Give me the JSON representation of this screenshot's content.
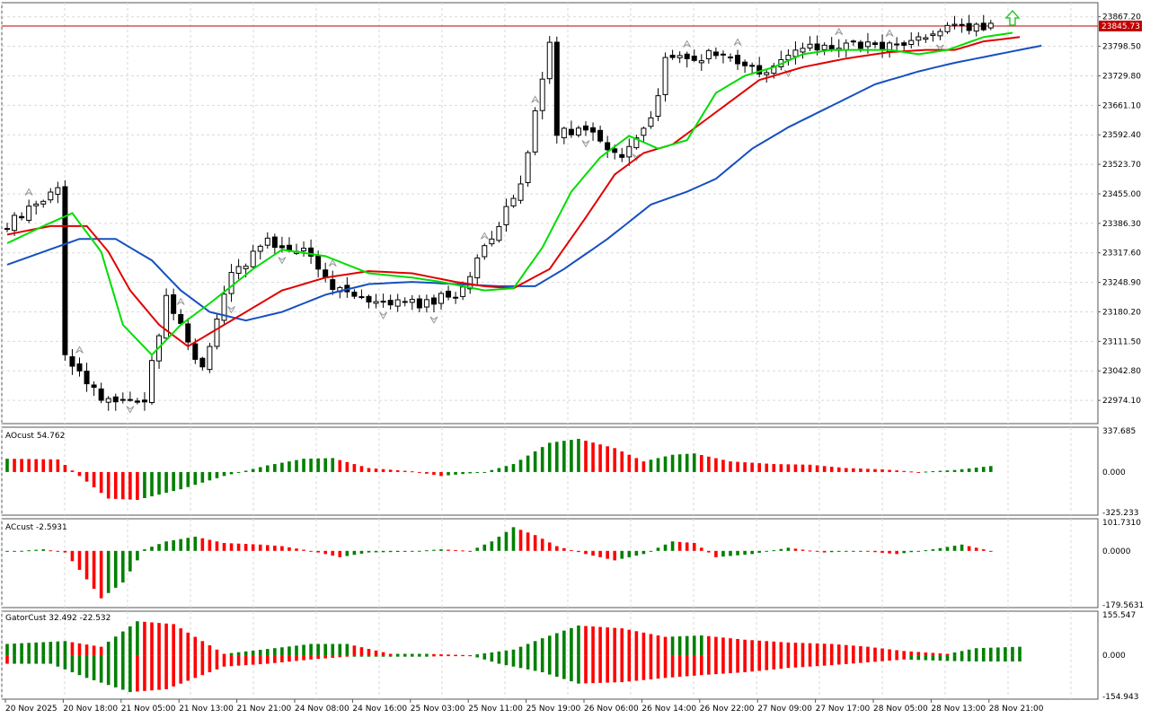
{
  "colors": {
    "bull": "#008000",
    "bear": "#ff0000",
    "ma_fast": "#00dd00",
    "ma_mid": "#e00000",
    "ma_slow": "#1550c0",
    "price_line": "#c00000",
    "grid": "#d9d9d9",
    "frame": "#555555",
    "fractal": "#9a9a9a",
    "arrow": "#35c535"
  },
  "icons": {
    "fractal": "fractal-arrow-icon",
    "signal": "up-arrow-icon"
  },
  "main": {
    "ylim": [
      22920,
      23900
    ],
    "yticks": [
      "23867.20",
      "23798.50",
      "23729.80",
      "23661.10",
      "23592.40",
      "23523.70",
      "23455.00",
      "23386.30",
      "23317.60",
      "23248.90",
      "23180.20",
      "23111.50",
      "23042.80",
      "22974.10"
    ],
    "current_price": "23845.73"
  },
  "ao_panel": {
    "label": "AOcust 54.762",
    "ylim": [
      -325.233,
      337.685
    ],
    "ticks": [
      "337.685",
      "0.000",
      "-325.233"
    ]
  },
  "ac_panel": {
    "label": "ACcust -2.5931",
    "ylim": [
      -179.5631,
      101.731
    ],
    "ticks": [
      "101.7310",
      "0.0000",
      "-179.5631"
    ]
  },
  "gator_panel": {
    "label": "GatorCust 32.492 -22.532",
    "ylim": [
      -154.943,
      155.547
    ],
    "ticks": [
      "155.547",
      "0.000",
      "-154.943"
    ]
  },
  "time_axis": [
    {
      "label": "20 Nov 2025",
      "bar": 0
    },
    {
      "label": "20 Nov 18:00",
      "bar": 8
    },
    {
      "label": "21 Nov 05:00",
      "bar": 16
    },
    {
      "label": "21 Nov 13:00",
      "bar": 24
    },
    {
      "label": "21 Nov 21:00",
      "bar": 32
    },
    {
      "label": "24 Nov 08:00",
      "bar": 40
    },
    {
      "label": "24 Nov 16:00",
      "bar": 48
    },
    {
      "label": "25 Nov 03:00",
      "bar": 56
    },
    {
      "label": "25 Nov 11:00",
      "bar": 64
    },
    {
      "label": "25 Nov 19:00",
      "bar": 72
    },
    {
      "label": "26 Nov 06:00",
      "bar": 80
    },
    {
      "label": "26 Nov 14:00",
      "bar": 88
    },
    {
      "label": "26 Nov 22:00",
      "bar": 96
    },
    {
      "label": "27 Nov 09:00",
      "bar": 104
    },
    {
      "label": "27 Nov 17:00",
      "bar": 112
    },
    {
      "label": "28 Nov 05:00",
      "bar": 120
    },
    {
      "label": "28 Nov 13:00",
      "bar": 128
    },
    {
      "label": "28 Nov 21:00",
      "bar": 136
    }
  ],
  "chart_data": [
    {
      "type": "candlestick",
      "ylim": [
        22920,
        23900
      ],
      "close_path": [
        [
          0,
          23380
        ],
        [
          7,
          23470
        ],
        [
          8,
          23080
        ],
        [
          13,
          22980
        ],
        [
          19,
          22975
        ],
        [
          22,
          23215
        ],
        [
          27,
          23045
        ],
        [
          31,
          23270
        ],
        [
          36,
          23340
        ],
        [
          42,
          23320
        ],
        [
          44,
          23250
        ],
        [
          50,
          23215
        ],
        [
          57,
          23200
        ],
        [
          62,
          23220
        ],
        [
          67,
          23350
        ],
        [
          71,
          23480
        ],
        [
          75,
          23810
        ],
        [
          76,
          23600
        ],
        [
          80,
          23610
        ],
        [
          85,
          23540
        ],
        [
          89,
          23620
        ],
        [
          91,
          23770
        ],
        [
          99,
          23780
        ],
        [
          104,
          23740
        ],
        [
          110,
          23790
        ],
        [
          114,
          23800
        ],
        [
          124,
          23800
        ],
        [
          127,
          23830
        ],
        [
          136,
          23850
        ]
      ],
      "ma_fast": [
        [
          0,
          23340
        ],
        [
          5,
          23380
        ],
        [
          9,
          23410
        ],
        [
          13,
          23320
        ],
        [
          16,
          23150
        ],
        [
          20,
          23080
        ],
        [
          24,
          23150
        ],
        [
          28,
          23200
        ],
        [
          34,
          23280
        ],
        [
          38,
          23325
        ],
        [
          44,
          23310
        ],
        [
          50,
          23270
        ],
        [
          56,
          23260
        ],
        [
          60,
          23250
        ],
        [
          66,
          23230
        ],
        [
          70,
          23235
        ],
        [
          74,
          23330
        ],
        [
          78,
          23460
        ],
        [
          82,
          23540
        ],
        [
          86,
          23590
        ],
        [
          90,
          23560
        ],
        [
          94,
          23580
        ],
        [
          98,
          23690
        ],
        [
          102,
          23730
        ],
        [
          106,
          23750
        ],
        [
          110,
          23780
        ],
        [
          114,
          23790
        ],
        [
          118,
          23790
        ],
        [
          122,
          23790
        ],
        [
          126,
          23780
        ],
        [
          130,
          23790
        ],
        [
          135,
          23820
        ],
        [
          139,
          23830
        ]
      ],
      "ma_mid": [
        [
          0,
          23360
        ],
        [
          6,
          23380
        ],
        [
          11,
          23380
        ],
        [
          14,
          23320
        ],
        [
          17,
          23230
        ],
        [
          21,
          23150
        ],
        [
          25,
          23100
        ],
        [
          29,
          23140
        ],
        [
          34,
          23190
        ],
        [
          38,
          23230
        ],
        [
          44,
          23260
        ],
        [
          50,
          23275
        ],
        [
          56,
          23270
        ],
        [
          62,
          23250
        ],
        [
          66,
          23240
        ],
        [
          70,
          23235
        ],
        [
          75,
          23280
        ],
        [
          80,
          23400
        ],
        [
          84,
          23500
        ],
        [
          88,
          23550
        ],
        [
          92,
          23570
        ],
        [
          96,
          23620
        ],
        [
          100,
          23670
        ],
        [
          104,
          23720
        ],
        [
          110,
          23750
        ],
        [
          116,
          23770
        ],
        [
          122,
          23785
        ],
        [
          127,
          23790
        ],
        [
          131,
          23790
        ],
        [
          135,
          23810
        ],
        [
          140,
          23820
        ]
      ],
      "ma_slow": [
        [
          0,
          23290
        ],
        [
          5,
          23320
        ],
        [
          10,
          23350
        ],
        [
          15,
          23350
        ],
        [
          20,
          23300
        ],
        [
          24,
          23230
        ],
        [
          28,
          23180
        ],
        [
          33,
          23160
        ],
        [
          38,
          23180
        ],
        [
          44,
          23220
        ],
        [
          50,
          23245
        ],
        [
          56,
          23250
        ],
        [
          62,
          23245
        ],
        [
          68,
          23240
        ],
        [
          73,
          23240
        ],
        [
          77,
          23280
        ],
        [
          83,
          23350
        ],
        [
          89,
          23430
        ],
        [
          94,
          23460
        ],
        [
          98,
          23490
        ],
        [
          103,
          23560
        ],
        [
          108,
          23610
        ],
        [
          114,
          23660
        ],
        [
          120,
          23710
        ],
        [
          126,
          23740
        ],
        [
          131,
          23760
        ],
        [
          137,
          23780
        ],
        [
          143,
          23800
        ]
      ]
    },
    {
      "type": "bar",
      "name": "AOcust",
      "ylim": [
        -325.233,
        337.685
      ],
      "keypoints": [
        [
          0,
          100
        ],
        [
          7,
          95
        ],
        [
          10,
          -30
        ],
        [
          14,
          -200
        ],
        [
          18,
          -210
        ],
        [
          24,
          -130
        ],
        [
          30,
          -30
        ],
        [
          36,
          50
        ],
        [
          41,
          100
        ],
        [
          45,
          105
        ],
        [
          50,
          30
        ],
        [
          56,
          5
        ],
        [
          60,
          -30
        ],
        [
          66,
          0
        ],
        [
          70,
          60
        ],
        [
          75,
          220
        ],
        [
          79,
          250
        ],
        [
          84,
          180
        ],
        [
          88,
          80
        ],
        [
          92,
          130
        ],
        [
          95,
          140
        ],
        [
          100,
          80
        ],
        [
          106,
          60
        ],
        [
          111,
          55
        ],
        [
          116,
          30
        ],
        [
          121,
          20
        ],
        [
          126,
          0
        ],
        [
          131,
          15
        ],
        [
          136,
          45
        ],
        [
          138,
          40
        ]
      ]
    },
    {
      "type": "bar",
      "name": "ACcust",
      "ylim": [
        -179.5631,
        101.731
      ],
      "keypoints": [
        [
          0,
          -3
        ],
        [
          5,
          5
        ],
        [
          8,
          -5
        ],
        [
          10,
          -60
        ],
        [
          13,
          -150
        ],
        [
          16,
          -100
        ],
        [
          19,
          5
        ],
        [
          22,
          30
        ],
        [
          26,
          45
        ],
        [
          30,
          25
        ],
        [
          35,
          20
        ],
        [
          38,
          15
        ],
        [
          42,
          0
        ],
        [
          46,
          -20
        ],
        [
          50,
          -5
        ],
        [
          55,
          -3
        ],
        [
          60,
          5
        ],
        [
          64,
          0
        ],
        [
          67,
          30
        ],
        [
          70,
          75
        ],
        [
          73,
          50
        ],
        [
          76,
          15
        ],
        [
          80,
          -10
        ],
        [
          84,
          -30
        ],
        [
          88,
          -10
        ],
        [
          92,
          30
        ],
        [
          95,
          25
        ],
        [
          98,
          -20
        ],
        [
          103,
          -10
        ],
        [
          108,
          10
        ],
        [
          113,
          -5
        ],
        [
          118,
          0
        ],
        [
          123,
          -10
        ],
        [
          128,
          5
        ],
        [
          132,
          20
        ],
        [
          136,
          0
        ]
      ]
    },
    {
      "type": "bar",
      "name": "GatorCust",
      "ylim": [
        -154.943,
        155.547
      ],
      "upper_keypoints": [
        [
          0,
          40
        ],
        [
          8,
          50
        ],
        [
          13,
          30
        ],
        [
          18,
          120
        ],
        [
          23,
          110
        ],
        [
          30,
          5
        ],
        [
          37,
          25
        ],
        [
          42,
          40
        ],
        [
          47,
          40
        ],
        [
          53,
          5
        ],
        [
          58,
          5
        ],
        [
          64,
          0
        ],
        [
          70,
          20
        ],
        [
          74,
          60
        ],
        [
          79,
          105
        ],
        [
          85,
          95
        ],
        [
          91,
          65
        ],
        [
          96,
          70
        ],
        [
          102,
          55
        ],
        [
          108,
          45
        ],
        [
          114,
          40
        ],
        [
          119,
          30
        ],
        [
          124,
          15
        ],
        [
          130,
          5
        ],
        [
          134,
          25
        ],
        [
          140,
          30
        ]
      ],
      "lower_keypoints": [
        [
          0,
          -30
        ],
        [
          6,
          -30
        ],
        [
          11,
          -80
        ],
        [
          17,
          -130
        ],
        [
          22,
          -120
        ],
        [
          30,
          -40
        ],
        [
          36,
          -30
        ],
        [
          42,
          -15
        ],
        [
          47,
          -5
        ],
        [
          53,
          -5
        ],
        [
          58,
          -5
        ],
        [
          64,
          0
        ],
        [
          68,
          -30
        ],
        [
          74,
          -60
        ],
        [
          79,
          -100
        ],
        [
          85,
          -95
        ],
        [
          91,
          -80
        ],
        [
          96,
          -70
        ],
        [
          102,
          -60
        ],
        [
          108,
          -45
        ],
        [
          114,
          -35
        ],
        [
          119,
          -25
        ],
        [
          124,
          -15
        ],
        [
          130,
          -20
        ],
        [
          134,
          -22
        ],
        [
          140,
          -22
        ]
      ]
    }
  ]
}
